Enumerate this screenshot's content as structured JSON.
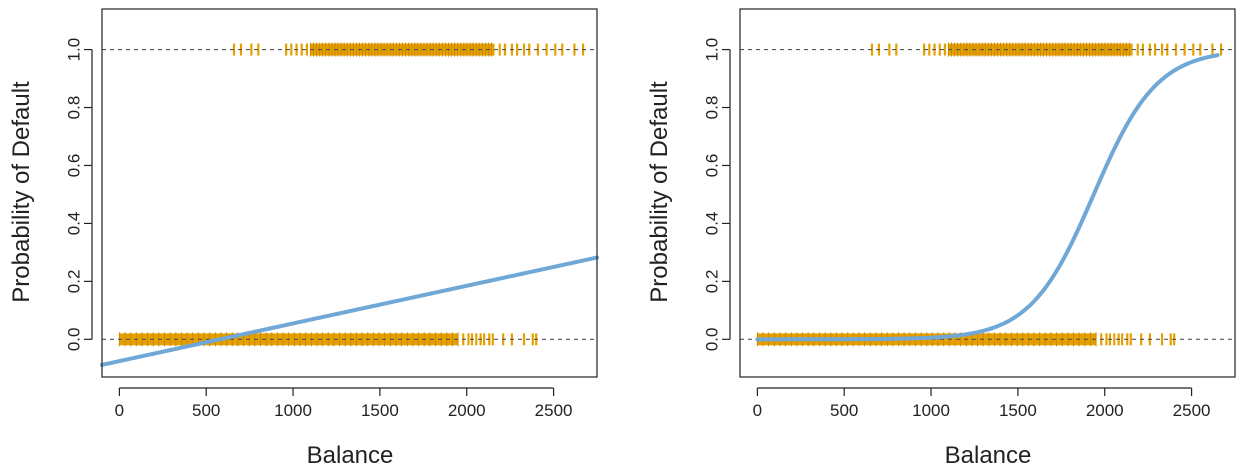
{
  "colors": {
    "marker": "#E5A000",
    "curve": "#6FA8D6",
    "axis": "#222222",
    "reference_line": "#555555"
  },
  "chart_data": [
    {
      "type": "line",
      "title": "",
      "xlabel": "Balance",
      "ylabel": "Probability of Default",
      "xlim": [
        -100,
        2750
      ],
      "ylim": [
        -0.13,
        1.14
      ],
      "xticks": [
        0,
        500,
        1000,
        1500,
        2000,
        2500
      ],
      "xtick_labels": [
        "0",
        "500",
        "1000",
        "1500",
        "2000",
        "2500"
      ],
      "yticks": [
        0.0,
        0.2,
        0.4,
        0.6,
        0.8,
        1.0
      ],
      "ytick_labels": [
        "0.0",
        "0.2",
        "0.4",
        "0.6",
        "0.8",
        "1.0"
      ],
      "reference_lines": [
        0,
        1
      ],
      "model": {
        "name": "linear regression",
        "intercept": -0.0752,
        "slope": 0.00013,
        "x_range": [
          -100,
          2750
        ]
      },
      "observations": {
        "default_no": {
          "y": 0,
          "dense_range": [
            0,
            1950
          ],
          "scattered": [
            1980,
            2010,
            2030,
            2055,
            2080,
            2100,
            2130,
            2150,
            2210,
            2260,
            2330,
            2380,
            2400
          ]
        },
        "default_yes": {
          "y": 1,
          "dense_range": [
            1100,
            2160
          ],
          "scattered": [
            660,
            700,
            760,
            800,
            960,
            990,
            1020,
            1050,
            1080,
            2190,
            2220,
            2260,
            2290,
            2330,
            2360,
            2410,
            2460,
            2510,
            2550,
            2620,
            2670
          ]
        }
      },
      "grid": false
    },
    {
      "type": "line",
      "title": "",
      "xlabel": "Balance",
      "ylabel": "Probability of Default",
      "xlim": [
        -100,
        2750
      ],
      "ylim": [
        -0.13,
        1.14
      ],
      "xticks": [
        0,
        500,
        1000,
        1500,
        2000,
        2500
      ],
      "xtick_labels": [
        "0",
        "500",
        "1000",
        "1500",
        "2000",
        "2500"
      ],
      "yticks": [
        0.0,
        0.2,
        0.4,
        0.6,
        0.8,
        1.0
      ],
      "ytick_labels": [
        "0.0",
        "0.2",
        "0.4",
        "0.6",
        "0.8",
        "1.0"
      ],
      "reference_lines": [
        0,
        1
      ],
      "model": {
        "name": "logistic regression",
        "intercept": -10.6513,
        "slope": 0.0055,
        "x_range": [
          0,
          2650
        ]
      },
      "observations": {
        "default_no": {
          "y": 0,
          "dense_range": [
            0,
            1950
          ],
          "scattered": [
            1980,
            2010,
            2030,
            2055,
            2080,
            2100,
            2130,
            2150,
            2210,
            2260,
            2330,
            2380,
            2400
          ]
        },
        "default_yes": {
          "y": 1,
          "dense_range": [
            1100,
            2160
          ],
          "scattered": [
            660,
            700,
            760,
            800,
            960,
            990,
            1020,
            1050,
            1080,
            2190,
            2220,
            2260,
            2290,
            2330,
            2360,
            2410,
            2460,
            2510,
            2550,
            2620,
            2670
          ]
        }
      },
      "grid": false
    }
  ]
}
